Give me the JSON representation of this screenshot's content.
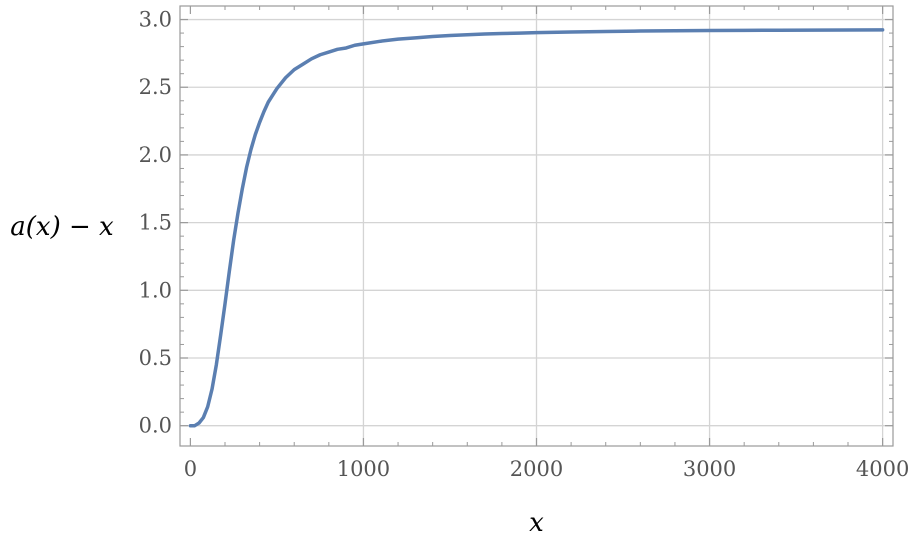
{
  "chart_data": {
    "type": "line",
    "title": "",
    "xlabel": "x",
    "ylabel": "a(x) − x",
    "xlim": [
      -60,
      4060
    ],
    "ylim": [
      -0.15,
      3.1
    ],
    "grid": true,
    "x_ticks": [
      0,
      1000,
      2000,
      3000,
      4000
    ],
    "x_tick_labels": [
      "0",
      "1000",
      "2000",
      "3000",
      "4000"
    ],
    "y_ticks": [
      0.0,
      0.5,
      1.0,
      1.5,
      2.0,
      2.5,
      3.0
    ],
    "y_tick_labels": [
      "0.0",
      "0.5",
      "1.0",
      "1.5",
      "2.0",
      "2.5",
      "3.0"
    ],
    "series": [
      {
        "color": "#5b7fb1",
        "x": [
          0,
          25,
          50,
          75,
          100,
          125,
          150,
          175,
          200,
          225,
          250,
          275,
          300,
          325,
          350,
          375,
          400,
          425,
          450,
          475,
          500,
          550,
          600,
          650,
          700,
          750,
          800,
          850,
          900,
          950,
          1000,
          1100,
          1200,
          1300,
          1400,
          1500,
          1600,
          1700,
          1800,
          1900,
          2000,
          2200,
          2400,
          2600,
          2800,
          3000,
          3200,
          3400,
          3600,
          3800,
          4000
        ],
        "y": [
          0.0,
          0.0,
          0.02,
          0.06,
          0.14,
          0.27,
          0.45,
          0.67,
          0.9,
          1.14,
          1.37,
          1.57,
          1.75,
          1.91,
          2.04,
          2.15,
          2.24,
          2.32,
          2.39,
          2.44,
          2.49,
          2.57,
          2.63,
          2.67,
          2.71,
          2.74,
          2.76,
          2.78,
          2.79,
          2.81,
          2.82,
          2.84,
          2.855,
          2.865,
          2.875,
          2.882,
          2.888,
          2.893,
          2.897,
          2.9,
          2.903,
          2.908,
          2.912,
          2.915,
          2.917,
          2.919,
          2.92,
          2.921,
          2.922,
          2.923,
          2.924
        ]
      }
    ]
  }
}
